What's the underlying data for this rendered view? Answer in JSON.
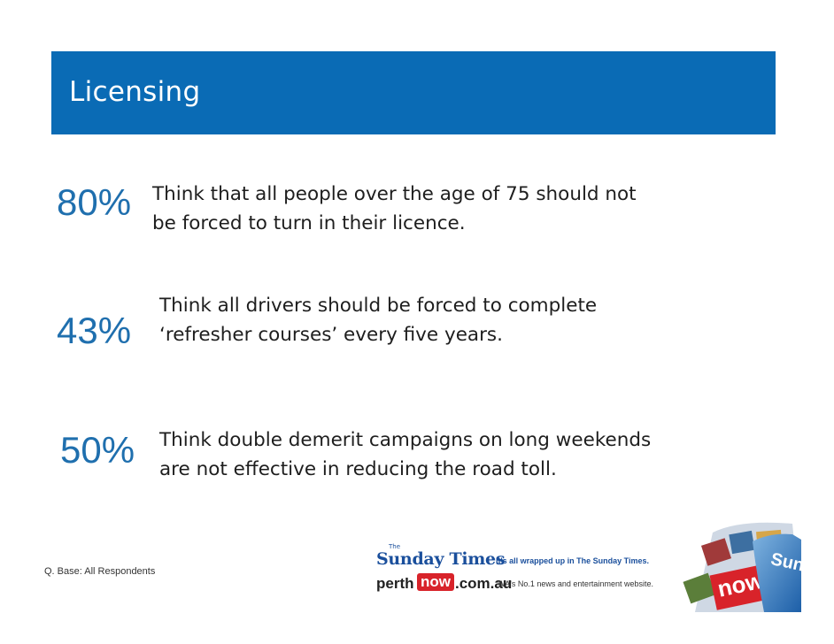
{
  "slide": {
    "title": "Licensing"
  },
  "stats": [
    {
      "percent": "80%",
      "line1": "Think that all people over the age of 75 should not",
      "line2": "be forced to turn in their licence."
    },
    {
      "percent": "43%",
      "line1": "Think all drivers should be forced to complete",
      "line2": "‘refresher courses’ every five years."
    },
    {
      "percent": "50%",
      "line1": "Think double demerit campaigns on long weekends",
      "line2": "are not effective in reducing the road toll."
    }
  ],
  "footer": {
    "base_note": "Q. Base: All Respondents",
    "sunday_times": {
      "the": "The",
      "name": "Sunday Times",
      "tagline": "It's all wrapped up in The Sunday Times."
    },
    "perthnow": {
      "perth": "perth",
      "now": "now",
      "domain": ".com.au",
      "tagline": "WA's No.1 news and entertainment website."
    },
    "corner_art": {
      "now": "now",
      "sunday": "Sund"
    }
  },
  "colors": {
    "title_bar": "#0a6bb5",
    "percent_text": "#1f6fae",
    "body_text": "#1e1e1e",
    "brand_blue": "#1a4f9c",
    "brand_red": "#d8232a"
  }
}
